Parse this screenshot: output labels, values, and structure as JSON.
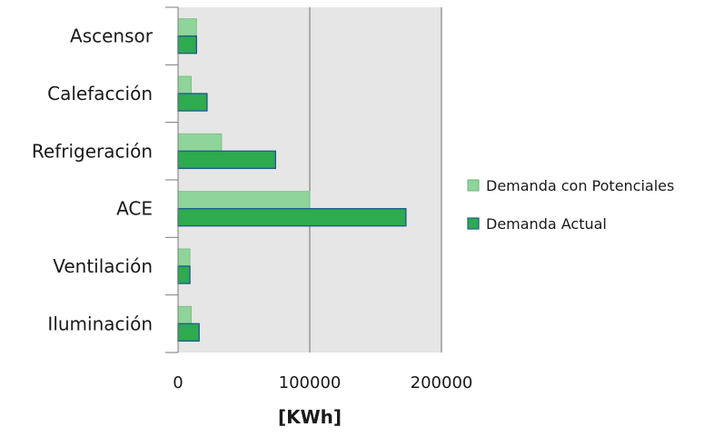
{
  "chart_data": {
    "type": "bar",
    "orientation": "horizontal",
    "categories": [
      "Ascensor",
      "Calefacción",
      "Refrigeración",
      "ACE",
      "Ventilación",
      "Iluminación"
    ],
    "series": [
      {
        "name": "Demanda con Potenciales",
        "values": [
          14000,
          10000,
          33000,
          100000,
          9000,
          10000
        ],
        "color": "#8fd49a"
      },
      {
        "name": "Demanda Actual",
        "values": [
          14000,
          22000,
          74000,
          173000,
          9000,
          16000
        ],
        "color": "#2eaa4f"
      }
    ],
    "xlabel": "[KWh]",
    "ylabel": "",
    "title": "",
    "xlim": [
      0,
      200000
    ],
    "xticks": [
      "0",
      "100000",
      "200000"
    ],
    "grid": true,
    "plot_background": "#e6e6e6",
    "legend_position": "right"
  }
}
